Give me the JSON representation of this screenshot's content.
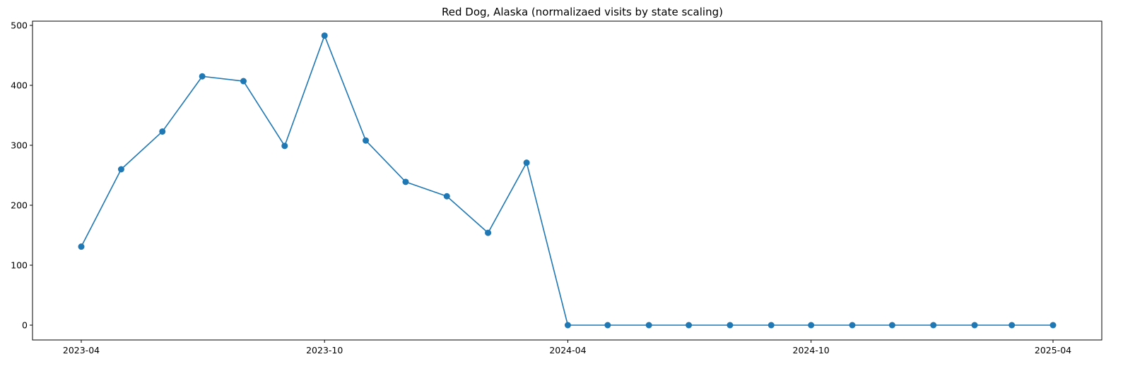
{
  "chart_data": {
    "type": "line",
    "title": "Red Dog, Alaska (normalizaed visits by state scaling)",
    "xlabel": "",
    "ylabel": "",
    "x_ticks": [
      "2023-04",
      "2023-10",
      "2024-04",
      "2024-10",
      "2025-04"
    ],
    "y_ticks": [
      0,
      100,
      200,
      300,
      400,
      500
    ],
    "ylim": [
      -25,
      507
    ],
    "grid": false,
    "legend": "none",
    "series": [
      {
        "color": "#1f77b4",
        "marker": "circle",
        "x": [
          "2023-04-01",
          "2023-05-01",
          "2023-06-01",
          "2023-07-01",
          "2023-08-01",
          "2023-09-01",
          "2023-10-01",
          "2023-11-01",
          "2023-12-01",
          "2024-01-01",
          "2024-02-01",
          "2024-03-01",
          "2024-04-01",
          "2024-05-01",
          "2024-06-01",
          "2024-07-01",
          "2024-08-01",
          "2024-09-01",
          "2024-10-01",
          "2024-11-01",
          "2024-12-01",
          "2025-01-01",
          "2025-02-01",
          "2025-03-01",
          "2025-04-01"
        ],
        "values": [
          131,
          260,
          323,
          415,
          407,
          299,
          483,
          308,
          239,
          215,
          154,
          271,
          0,
          0,
          0,
          0,
          0,
          0,
          0,
          0,
          0,
          0,
          0,
          0,
          0
        ]
      }
    ]
  }
}
